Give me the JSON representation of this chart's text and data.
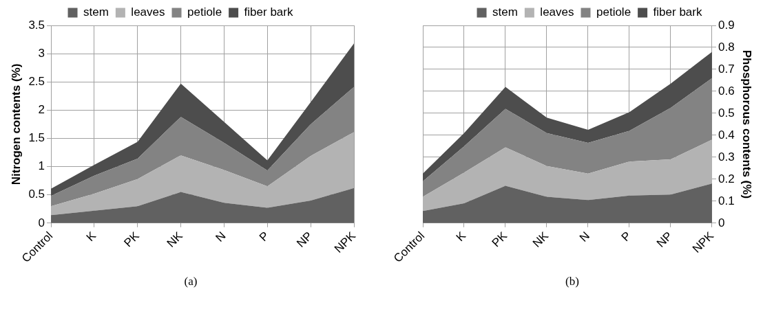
{
  "chart_data": [
    {
      "type": "area",
      "stacked": true,
      "ylabel": "Nitrogen contents (%)",
      "categories": [
        "Control",
        "K",
        "PK",
        "NK",
        "N",
        "P",
        "NP",
        "NPK"
      ],
      "ylim": [
        0,
        3.5
      ],
      "yticks": [
        0,
        0.5,
        1,
        1.5,
        2,
        2.5,
        3,
        3.5
      ],
      "grid": true,
      "legend": "top",
      "annotations": [
        "(a)"
      ],
      "series": [
        {
          "name": "stem",
          "color": "#616161",
          "values": [
            0.14,
            0.22,
            0.3,
            0.55,
            0.36,
            0.27,
            0.4,
            0.62
          ]
        },
        {
          "name": "leaves",
          "color": "#b3b3b3",
          "values": [
            0.16,
            0.3,
            0.48,
            0.65,
            0.58,
            0.38,
            0.79,
            0.99
          ]
        },
        {
          "name": "petiole",
          "color": "#838383",
          "values": [
            0.18,
            0.32,
            0.36,
            0.68,
            0.48,
            0.28,
            0.56,
            0.8
          ]
        },
        {
          "name": "fiber bark",
          "color": "#4d4d4d",
          "values": [
            0.13,
            0.19,
            0.3,
            0.59,
            0.37,
            0.18,
            0.39,
            0.77
          ]
        }
      ]
    },
    {
      "type": "area",
      "stacked": true,
      "y2label": "Phosphorous contents (%)",
      "categories": [
        "Control",
        "K",
        "PK",
        "NK",
        "N",
        "P",
        "NP",
        "NPK"
      ],
      "y2lim": [
        0,
        0.9
      ],
      "y2ticks": [
        0,
        0.1,
        0.2,
        0.3,
        0.4,
        0.5,
        0.6,
        0.7,
        0.8,
        0.9
      ],
      "grid": true,
      "legend": "top",
      "annotations": [
        "(b)"
      ],
      "series": [
        {
          "name": "stem",
          "color": "#616161",
          "axis": "y2",
          "values": [
            0.055,
            0.09,
            0.17,
            0.12,
            0.105,
            0.125,
            0.13,
            0.18
          ]
        },
        {
          "name": "leaves",
          "color": "#b3b3b3",
          "axis": "y2",
          "values": [
            0.065,
            0.14,
            0.175,
            0.14,
            0.12,
            0.155,
            0.16,
            0.2
          ]
        },
        {
          "name": "petiole",
          "color": "#838383",
          "axis": "y2",
          "values": [
            0.07,
            0.12,
            0.175,
            0.15,
            0.14,
            0.14,
            0.235,
            0.28
          ]
        },
        {
          "name": "fiber bark",
          "color": "#4d4d4d",
          "axis": "y2",
          "values": [
            0.035,
            0.06,
            0.1,
            0.07,
            0.06,
            0.085,
            0.11,
            0.12
          ]
        }
      ]
    }
  ]
}
